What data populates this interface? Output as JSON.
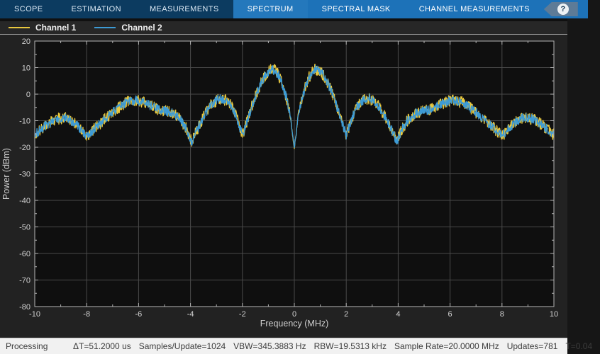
{
  "toolbar": {
    "tabs": [
      {
        "label": "SCOPE",
        "active": false,
        "section": "left"
      },
      {
        "label": "ESTIMATION",
        "active": false,
        "section": "left"
      },
      {
        "label": "MEASUREMENTS",
        "active": false,
        "section": "left"
      },
      {
        "label": "SPECTRUM",
        "active": true,
        "section": "right"
      },
      {
        "label": "SPECTRAL MASK",
        "active": false,
        "section": "right"
      },
      {
        "label": "CHANNEL MEASUREMENTS",
        "active": false,
        "section": "right"
      }
    ],
    "help_glyph": "?",
    "colors": {
      "left_bg": "#0c3b60",
      "right_bg": "#1d72b8",
      "active_bg": "#2478bc"
    }
  },
  "legend": {
    "items": [
      {
        "label": "Channel 1",
        "color": "#e9c83e"
      },
      {
        "label": "Channel 2",
        "color": "#3d9bd6"
      }
    ]
  },
  "status_bar": {
    "state": "Processing",
    "metrics": [
      "ΔT=51.2000 us",
      "Samples/Update=1024",
      "VBW=345.3883 Hz",
      "RBW=19.5313 kHz",
      "Sample Rate=20.0000 MHz",
      "Updates=781",
      "T=0.04"
    ]
  },
  "chart_data": {
    "type": "line",
    "title": "",
    "xlabel": "Frequency (MHz)",
    "ylabel": "Power (dBm)",
    "xlim": [
      -10,
      10
    ],
    "ylim": [
      -80,
      20
    ],
    "xticks": [
      -10,
      -8,
      -6,
      -4,
      -2,
      0,
      2,
      4,
      6,
      8,
      10
    ],
    "yticks": [
      20,
      10,
      0,
      -10,
      -20,
      -30,
      -40,
      -50,
      -60,
      -70,
      -80
    ],
    "x_minor_step": 1,
    "y_minor_step": 5,
    "grid": true,
    "legend_position": "top-left-bar",
    "plot_bg": "#0f0f0f",
    "grid_color": "#4a4a4a",
    "axis_color": "#b4b4b4",
    "tick_label_color": "#d2d2d2",
    "series": [
      {
        "name": "Channel 1",
        "color": "#e9c83e",
        "noise_db": 2.2,
        "seed": 1234567
      },
      {
        "name": "Channel 2",
        "color": "#3d9bd6",
        "noise_db": 1.7,
        "seed": 7654321
      }
    ],
    "envelope_abs_freq_db": [
      [
        0.0,
        -20.0
      ],
      [
        0.06,
        -16.0
      ],
      [
        0.15,
        -8.0
      ],
      [
        0.3,
        -1.5
      ],
      [
        0.45,
        3.5
      ],
      [
        0.6,
        7.0
      ],
      [
        0.75,
        9.0
      ],
      [
        0.9,
        9.3
      ],
      [
        1.05,
        8.0
      ],
      [
        1.25,
        5.0
      ],
      [
        1.45,
        0.5
      ],
      [
        1.65,
        -5.0
      ],
      [
        1.85,
        -11.0
      ],
      [
        2.0,
        -15.5
      ],
      [
        2.15,
        -11.0
      ],
      [
        2.35,
        -5.5
      ],
      [
        2.6,
        -2.5
      ],
      [
        2.9,
        -1.5
      ],
      [
        3.2,
        -4.0
      ],
      [
        3.5,
        -8.5
      ],
      [
        3.75,
        -13.5
      ],
      [
        3.95,
        -18.0
      ],
      [
        4.15,
        -13.0
      ],
      [
        4.4,
        -9.5
      ],
      [
        4.7,
        -7.0
      ],
      [
        5.0,
        -6.3
      ],
      [
        5.3,
        -5.5
      ],
      [
        5.7,
        -3.5
      ],
      [
        6.1,
        -2.2
      ],
      [
        6.5,
        -3.2
      ],
      [
        6.9,
        -6.0
      ],
      [
        7.3,
        -9.5
      ],
      [
        7.7,
        -13.0
      ],
      [
        8.0,
        -15.8
      ],
      [
        8.35,
        -12.0
      ],
      [
        8.8,
        -8.8
      ],
      [
        9.2,
        -9.3
      ],
      [
        9.6,
        -12.0
      ],
      [
        10.0,
        -15.3
      ]
    ]
  }
}
